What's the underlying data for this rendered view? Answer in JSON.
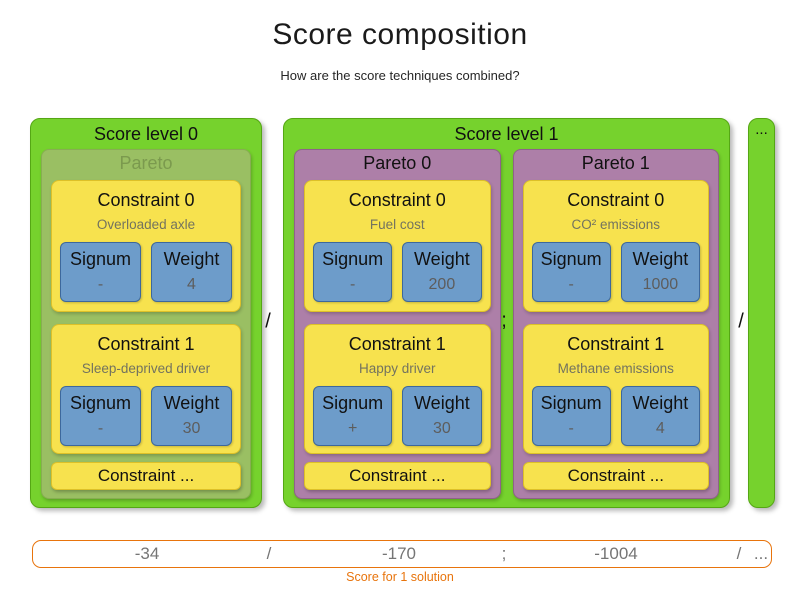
{
  "header": {
    "title": "Score composition",
    "subtitle": "How are the score techniques combined?"
  },
  "labels": {
    "signum": "Signum",
    "weight": "Weight"
  },
  "levels": [
    {
      "label": "Score level 0",
      "groups": [
        {
          "label": "Pareto",
          "constraints": [
            {
              "title": "Constraint 0",
              "name": "Overloaded axle",
              "signum": "-",
              "weight": "4"
            },
            {
              "title": "Constraint 1",
              "name": "Sleep-deprived driver",
              "signum": "-",
              "weight": "30"
            }
          ],
          "more_label": "Constraint ..."
        }
      ]
    },
    {
      "label": "Score level 1",
      "groups": [
        {
          "label": "Pareto 0",
          "constraints": [
            {
              "title": "Constraint 0",
              "name": "Fuel cost",
              "signum": "-",
              "weight": "200"
            },
            {
              "title": "Constraint 1",
              "name": "Happy driver",
              "signum": "+",
              "weight": "30"
            }
          ],
          "more_label": "Constraint ..."
        },
        {
          "label": "Pareto 1",
          "constraints": [
            {
              "title": "Constraint 0",
              "name": "CO² emissions",
              "signum": "-",
              "weight": "1000"
            },
            {
              "title": "Constraint 1",
              "name": "Methane emissions",
              "signum": "-",
              "weight": "4"
            }
          ],
          "more_label": "Constraint ..."
        }
      ]
    }
  ],
  "separators": {
    "level": "/",
    "pareto": ";"
  },
  "more_levels": "...",
  "score_bar": {
    "values": [
      "-34",
      "/",
      "-170",
      ";",
      "-1004",
      "/",
      "..."
    ],
    "caption": "Score for 1 solution"
  },
  "colors": {
    "green": "#76d22d",
    "muted_green": "#9abf63",
    "purple": "#ad7fa8",
    "yellow": "#f7e24e",
    "blue": "#6d9cca",
    "orange": "#e8740c"
  }
}
